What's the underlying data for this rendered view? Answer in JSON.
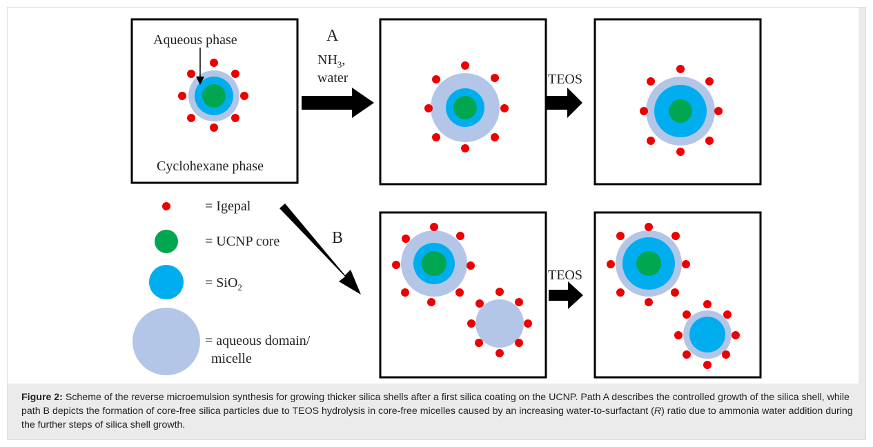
{
  "figure": {
    "labels": {
      "aqueous_phase": "Aqueous phase",
      "cyclohexane_phase": "Cyclohexane phase",
      "path_a": "A",
      "nh3": "NH",
      "nh3_sub": "3",
      "nh3_comma": ",",
      "water": "water",
      "path_b": "B",
      "teos_top": "TEOS",
      "teos_bottom": "TEOS"
    },
    "legend": {
      "igepal": "= Igepal",
      "ucnp_core": "= UCNP core",
      "sio2": "= SiO",
      "sio2_sub": "2",
      "aqueous_line1": "= aqueous domain/",
      "aqueous_line2": "micelle"
    },
    "colors": {
      "igepal": "#ee0000",
      "ucnp_core": "#00a650",
      "sio2": "#00aeef",
      "aqueous": "#b4c6e7"
    }
  },
  "caption": {
    "label": "Figure 2:",
    "text_1": " Scheme of the reverse microemulsion synthesis for growing thicker silica shells after a first silica coating on the UCNP. Path A describes the controlled growth of the silica shell, while path B depicts the formation of core-free silica particles due to TEOS hydrolysis in core-free micelles caused by an increasing water-to-surfactant (",
    "italic": "R",
    "text_2": ") ratio due to ammonia water addition during the further steps of silica shell growth."
  }
}
